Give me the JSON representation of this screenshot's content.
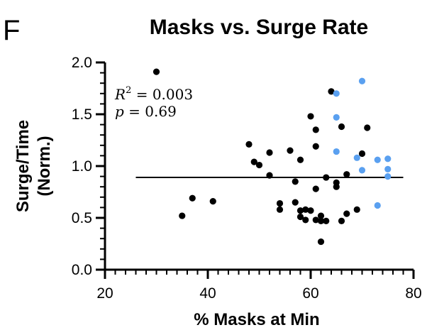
{
  "panel_letter": "F",
  "colors": {
    "series_black": "#000000",
    "series_blue": "#5aa0f0"
  },
  "chart_data": {
    "type": "scatter",
    "title": "Masks vs. Surge Rate",
    "xlabel": "% Masks at Min",
    "ylabel_line1": "Surge/Time",
    "ylabel_line2": "(Norm.)",
    "xlim": [
      20,
      80
    ],
    "ylim": [
      0,
      2.0
    ],
    "x_ticks": [
      {
        "value": 20,
        "label": "20"
      },
      {
        "value": 40,
        "label": "40"
      },
      {
        "value": 60,
        "label": "60"
      },
      {
        "value": 80,
        "label": "80"
      }
    ],
    "y_ticks": [
      {
        "value": 0.0,
        "label": "0.0"
      },
      {
        "value": 0.5,
        "label": "0.5"
      },
      {
        "value": 1.0,
        "label": "1.0"
      },
      {
        "value": 1.5,
        "label": "1.5"
      },
      {
        "value": 2.0,
        "label": "2.0"
      }
    ],
    "x_minor_step": 2,
    "y_minor_step": 0.1,
    "grid": false,
    "legend": "none",
    "annotations": {
      "r2_prefix": "R",
      "r2_sup": "2",
      "r2_value": " = 0.003",
      "p_prefix": "p",
      "p_value": " = 0.69"
    },
    "fit_line": {
      "x": [
        26,
        78
      ],
      "y": [
        0.89,
        0.89
      ]
    },
    "series": [
      {
        "color": "#000000",
        "points": [
          [
            30,
            1.91
          ],
          [
            35,
            0.52
          ],
          [
            37,
            0.69
          ],
          [
            41,
            0.66
          ],
          [
            48,
            1.21
          ],
          [
            49,
            1.04
          ],
          [
            50,
            1.01
          ],
          [
            52,
            1.13
          ],
          [
            52,
            0.91
          ],
          [
            54,
            0.64
          ],
          [
            54,
            0.58
          ],
          [
            56,
            1.15
          ],
          [
            57,
            0.85
          ],
          [
            57,
            0.65
          ],
          [
            58,
            1.06
          ],
          [
            58,
            0.57
          ],
          [
            58,
            0.51
          ],
          [
            59,
            0.58
          ],
          [
            59,
            0.48
          ],
          [
            60,
            1.48
          ],
          [
            60,
            0.57
          ],
          [
            61,
            1.35
          ],
          [
            61,
            1.19
          ],
          [
            61,
            0.78
          ],
          [
            61,
            0.48
          ],
          [
            62,
            0.52
          ],
          [
            62,
            0.47
          ],
          [
            62,
            0.27
          ],
          [
            63,
            0.89
          ],
          [
            63,
            0.47
          ],
          [
            64,
            1.72
          ],
          [
            65,
            0.84
          ],
          [
            65,
            0.8
          ],
          [
            66,
            1.38
          ],
          [
            66,
            0.47
          ],
          [
            67,
            0.92
          ],
          [
            67,
            0.54
          ],
          [
            69,
            0.58
          ],
          [
            70,
            1.12
          ],
          [
            71,
            1.37
          ]
        ]
      },
      {
        "color": "#5aa0f0",
        "points": [
          [
            65,
            1.7
          ],
          [
            65,
            1.47
          ],
          [
            65,
            1.14
          ],
          [
            69,
            1.08
          ],
          [
            70,
            1.82
          ],
          [
            70,
            0.96
          ],
          [
            73,
            1.06
          ],
          [
            73,
            0.62
          ],
          [
            75,
            1.07
          ],
          [
            75,
            0.97
          ],
          [
            75,
            0.9
          ]
        ]
      }
    ]
  }
}
